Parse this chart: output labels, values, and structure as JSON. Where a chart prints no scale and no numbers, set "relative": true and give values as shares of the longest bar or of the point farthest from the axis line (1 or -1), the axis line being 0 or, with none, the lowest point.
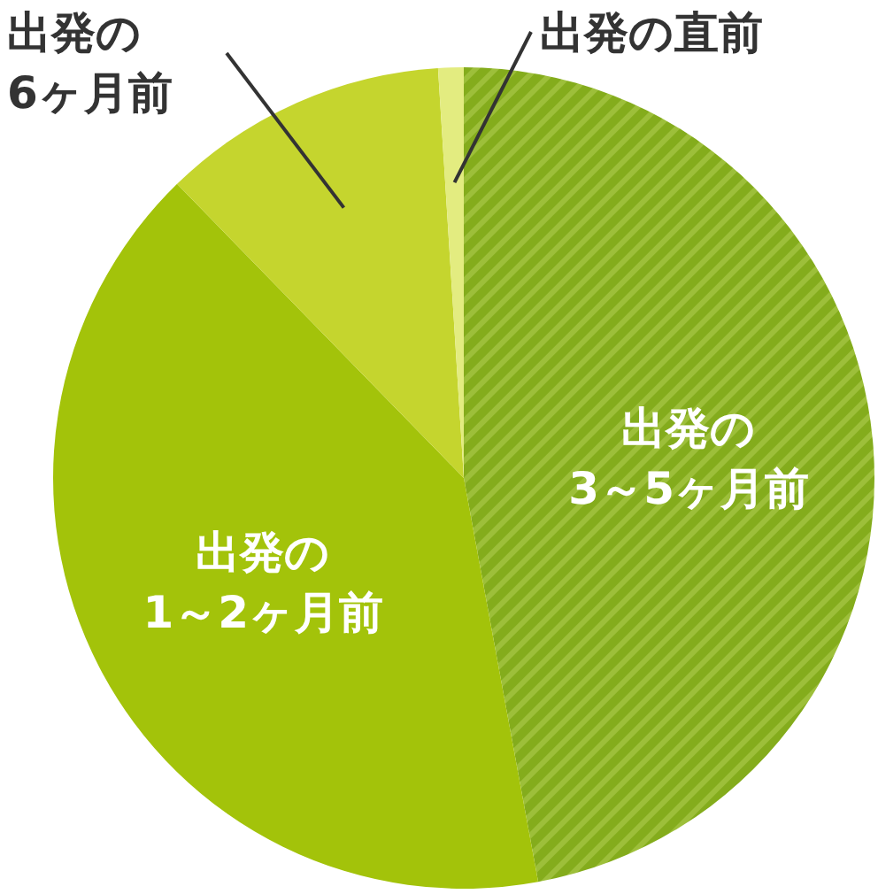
{
  "chart_data": {
    "type": "pie",
    "relative": true,
    "categories": [
      "出発の\n3～5ヶ月前",
      "出発の\n1～2ヶ月前",
      "出発の\n6ヶ月前",
      "出発の直前"
    ],
    "values": [
      47.1,
      40.6,
      11.3,
      1.0
    ],
    "colors": [
      "#84ac1c",
      "#a3c30a",
      "#c5d52e",
      "#e3ec80"
    ]
  }
}
